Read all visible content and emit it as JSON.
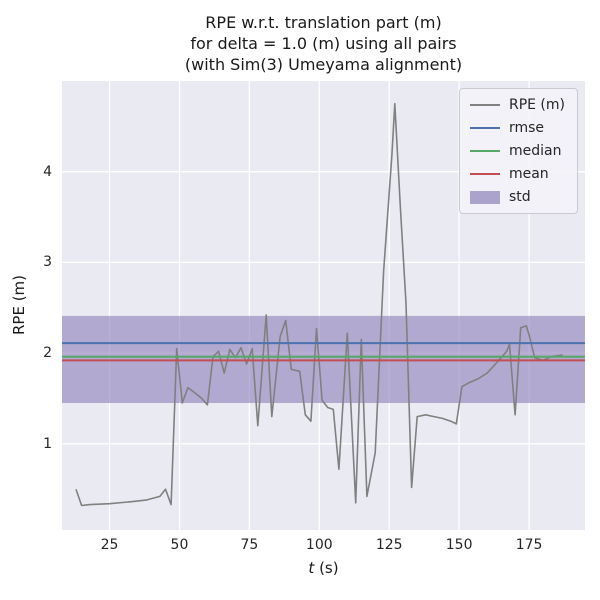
{
  "figure": {
    "title_lines": [
      "RPE w.r.t. translation part (m)",
      "for delta = 1.0 (m) using all pairs",
      "(with Sim(3) Umeyama alignment)"
    ]
  },
  "axes": {
    "xlabel_symbol": "t",
    "xlabel_unit": " (s)",
    "ylabel": "RPE (m)"
  },
  "legend": {
    "items": [
      {
        "label": "RPE (m)",
        "color": "#808080",
        "kind": "line"
      },
      {
        "label": "rmse",
        "color": "#4C72B0",
        "kind": "line"
      },
      {
        "label": "median",
        "color": "#55A868",
        "kind": "line"
      },
      {
        "label": "mean",
        "color": "#C44E52",
        "kind": "line"
      },
      {
        "label": "std",
        "color": "#8172B2",
        "kind": "patch"
      }
    ]
  },
  "chart_data": {
    "type": "line",
    "title": "RPE w.r.t. translation part (m)\nfor delta = 1.0 (m) using all pairs\n(with Sim(3) Umeyama alignment)",
    "xlabel": "t (s)",
    "ylabel": "RPE (m)",
    "xlim": [
      8,
      195
    ],
    "ylim": [
      0.05,
      5.0
    ],
    "xticks": [
      25,
      50,
      75,
      100,
      125,
      150,
      175
    ],
    "yticks": [
      1,
      2,
      3,
      4
    ],
    "grid": true,
    "grid_color": "#ffffff",
    "background": "#EAEAF2",
    "legend_position": "upper right",
    "series": [
      {
        "name": "RPE (m)",
        "type": "line",
        "color": "#808080",
        "points": [
          [
            13,
            0.5
          ],
          [
            15,
            0.32
          ],
          [
            18,
            0.33
          ],
          [
            25,
            0.34
          ],
          [
            32,
            0.36
          ],
          [
            38,
            0.38
          ],
          [
            43,
            0.42
          ],
          [
            45,
            0.5
          ],
          [
            47,
            0.33
          ],
          [
            49,
            2.05
          ],
          [
            51,
            1.45
          ],
          [
            53,
            1.62
          ],
          [
            56,
            1.55
          ],
          [
            58,
            1.5
          ],
          [
            60,
            1.43
          ],
          [
            62,
            1.96
          ],
          [
            64,
            2.02
          ],
          [
            66,
            1.78
          ],
          [
            68,
            2.04
          ],
          [
            70,
            1.95
          ],
          [
            72,
            2.06
          ],
          [
            74,
            1.88
          ],
          [
            76,
            2.05
          ],
          [
            78,
            1.2
          ],
          [
            81,
            2.42
          ],
          [
            83,
            1.3
          ],
          [
            86,
            2.18
          ],
          [
            88,
            2.36
          ],
          [
            90,
            1.82
          ],
          [
            93,
            1.8
          ],
          [
            95,
            1.32
          ],
          [
            97,
            1.25
          ],
          [
            99,
            2.27
          ],
          [
            101,
            1.48
          ],
          [
            103,
            1.4
          ],
          [
            105,
            1.38
          ],
          [
            107,
            0.72
          ],
          [
            110,
            2.22
          ],
          [
            113,
            0.35
          ],
          [
            115,
            2.15
          ],
          [
            117,
            0.42
          ],
          [
            120,
            0.9
          ],
          [
            123,
            2.9
          ],
          [
            126,
            4.2
          ],
          [
            127,
            4.75
          ],
          [
            129,
            3.6
          ],
          [
            131,
            2.55
          ],
          [
            133,
            0.52
          ],
          [
            135,
            1.3
          ],
          [
            138,
            1.32
          ],
          [
            141,
            1.3
          ],
          [
            144,
            1.28
          ],
          [
            147,
            1.25
          ],
          [
            149,
            1.22
          ],
          [
            151,
            1.63
          ],
          [
            154,
            1.68
          ],
          [
            157,
            1.72
          ],
          [
            160,
            1.78
          ],
          [
            163,
            1.88
          ],
          [
            165,
            1.95
          ],
          [
            167,
            2.02
          ],
          [
            168,
            2.1
          ],
          [
            170,
            1.32
          ],
          [
            172,
            2.28
          ],
          [
            174,
            2.3
          ],
          [
            175,
            2.2
          ],
          [
            177,
            1.95
          ],
          [
            180,
            1.92
          ],
          [
            183,
            1.96
          ],
          [
            187,
            1.98
          ]
        ]
      },
      {
        "name": "rmse",
        "type": "hline",
        "color": "#4C72B0",
        "value": 2.11
      },
      {
        "name": "median",
        "type": "hline",
        "color": "#55A868",
        "value": 1.96
      },
      {
        "name": "mean",
        "type": "hline",
        "color": "#C44E52",
        "value": 1.92
      },
      {
        "name": "std",
        "type": "hband",
        "color": "#8172B2",
        "opacity": 0.55,
        "range": [
          1.45,
          2.41
        ]
      }
    ]
  }
}
